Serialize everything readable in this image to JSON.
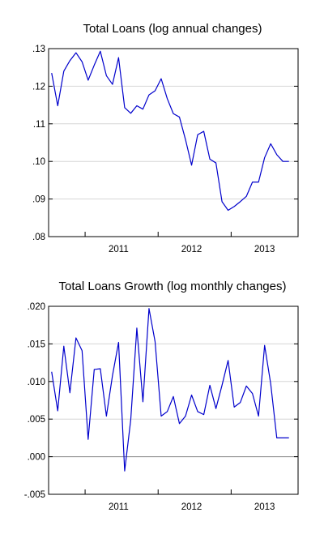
{
  "chart_data": [
    {
      "type": "line",
      "title": "Total Loans (log annual changes)",
      "xlabel": "",
      "ylabel": "",
      "x_tick_labels": [
        "2011",
        "2012",
        "2013"
      ],
      "y_tick_labels": [
        ".08",
        ".09",
        ".10",
        ".11",
        ".12",
        ".13"
      ],
      "y_ticks": [
        0.08,
        0.09,
        0.1,
        0.11,
        0.12,
        0.13
      ],
      "ylim": [
        0.08,
        0.13
      ],
      "xlim": [
        "2010-07",
        "2013-12"
      ],
      "grid": true,
      "x": [
        "2010-07",
        "2010-08",
        "2010-09",
        "2010-10",
        "2010-11",
        "2010-12",
        "2011-01",
        "2011-02",
        "2011-03",
        "2011-04",
        "2011-05",
        "2011-06",
        "2011-07",
        "2011-08",
        "2011-09",
        "2011-10",
        "2011-11",
        "2011-12",
        "2012-01",
        "2012-02",
        "2012-03",
        "2012-04",
        "2012-05",
        "2012-06",
        "2012-07",
        "2012-08",
        "2012-09",
        "2012-10",
        "2012-11",
        "2012-12",
        "2013-01",
        "2013-02",
        "2013-03",
        "2013-04",
        "2013-05",
        "2013-06",
        "2013-07",
        "2013-08",
        "2013-09",
        "2013-10"
      ],
      "series": [
        {
          "color": "#0000cc",
          "values": [
            0.1235,
            0.1148,
            0.124,
            0.1268,
            0.1289,
            0.1265,
            0.1216,
            0.1256,
            0.1293,
            0.1228,
            0.1205,
            0.1276,
            0.1143,
            0.1128,
            0.1148,
            0.1139,
            0.1177,
            0.1188,
            0.122,
            0.1167,
            0.1127,
            0.1118,
            0.1058,
            0.099,
            0.1071,
            0.108,
            0.1006,
            0.0996,
            0.0893,
            0.087,
            0.088,
            0.0893,
            0.0907,
            0.0945,
            0.0945,
            0.101,
            0.1047,
            0.1018,
            0.1,
            0.1
          ]
        }
      ]
    },
    {
      "type": "line",
      "title": "Total Loans Growth (log monthly changes)",
      "xlabel": "",
      "ylabel": "",
      "x_tick_labels": [
        "2011",
        "2012",
        "2013"
      ],
      "y_tick_labels": [
        "-.005",
        ".000",
        ".005",
        ".010",
        ".015",
        ".020"
      ],
      "y_ticks": [
        -0.005,
        0.0,
        0.005,
        0.01,
        0.015,
        0.02
      ],
      "ylim": [
        -0.005,
        0.02
      ],
      "xlim": [
        "2010-07",
        "2013-12"
      ],
      "grid": true,
      "x": [
        "2010-07",
        "2010-08",
        "2010-09",
        "2010-10",
        "2010-11",
        "2010-12",
        "2011-01",
        "2011-02",
        "2011-03",
        "2011-04",
        "2011-05",
        "2011-06",
        "2011-07",
        "2011-08",
        "2011-09",
        "2011-10",
        "2011-11",
        "2011-12",
        "2012-01",
        "2012-02",
        "2012-03",
        "2012-04",
        "2012-05",
        "2012-06",
        "2012-07",
        "2012-08",
        "2012-09",
        "2012-10",
        "2012-11",
        "2012-12",
        "2013-01",
        "2013-02",
        "2013-03",
        "2013-04",
        "2013-05",
        "2013-06",
        "2013-07",
        "2013-08",
        "2013-09",
        "2013-10"
      ],
      "series": [
        {
          "color": "#0000cc",
          "values": [
            0.0113,
            0.0061,
            0.0147,
            0.0085,
            0.0158,
            0.0141,
            0.0023,
            0.0116,
            0.0117,
            0.0054,
            0.0108,
            0.0152,
            -0.0019,
            0.0049,
            0.0171,
            0.0073,
            0.0197,
            0.0153,
            0.0054,
            0.006,
            0.008,
            0.0044,
            0.0054,
            0.0082,
            0.006,
            0.0056,
            0.0095,
            0.0064,
            0.0095,
            0.0128,
            0.0066,
            0.0072,
            0.0094,
            0.0084,
            0.0054,
            0.0148,
            0.0097,
            0.0025,
            0.0025,
            0.0025
          ]
        }
      ]
    }
  ]
}
